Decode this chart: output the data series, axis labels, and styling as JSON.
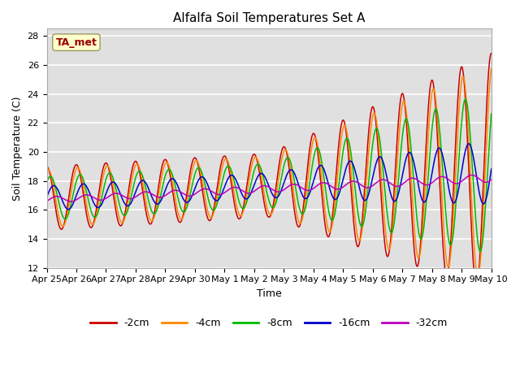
{
  "title": "Alfalfa Soil Temperatures Set A",
  "xlabel": "Time",
  "ylabel": "Soil Temperature (C)",
  "ylim": [
    12,
    28.5
  ],
  "annotation": "TA_met",
  "legend_labels": [
    "-2cm",
    "-4cm",
    "-8cm",
    "-16cm",
    "-32cm"
  ],
  "legend_colors": [
    "#cc0000",
    "#ff8800",
    "#00bb00",
    "#0000cc",
    "#bb00bb"
  ],
  "bg_color": "#e0e0e0",
  "grid_color": "#ffffff",
  "tick_labels": [
    "Apr 25",
    "Apr 26",
    "Apr 27",
    "Apr 28",
    "Apr 29",
    "Apr 30",
    "May 1",
    "May 2",
    "May 3",
    "May 4",
    "May 5",
    "May 6",
    "May 7",
    "May 8",
    "May 9",
    "May 10"
  ],
  "tick_positions": [
    0,
    1,
    2,
    3,
    4,
    5,
    6,
    7,
    8,
    9,
    10,
    11,
    12,
    13,
    14,
    15
  ]
}
